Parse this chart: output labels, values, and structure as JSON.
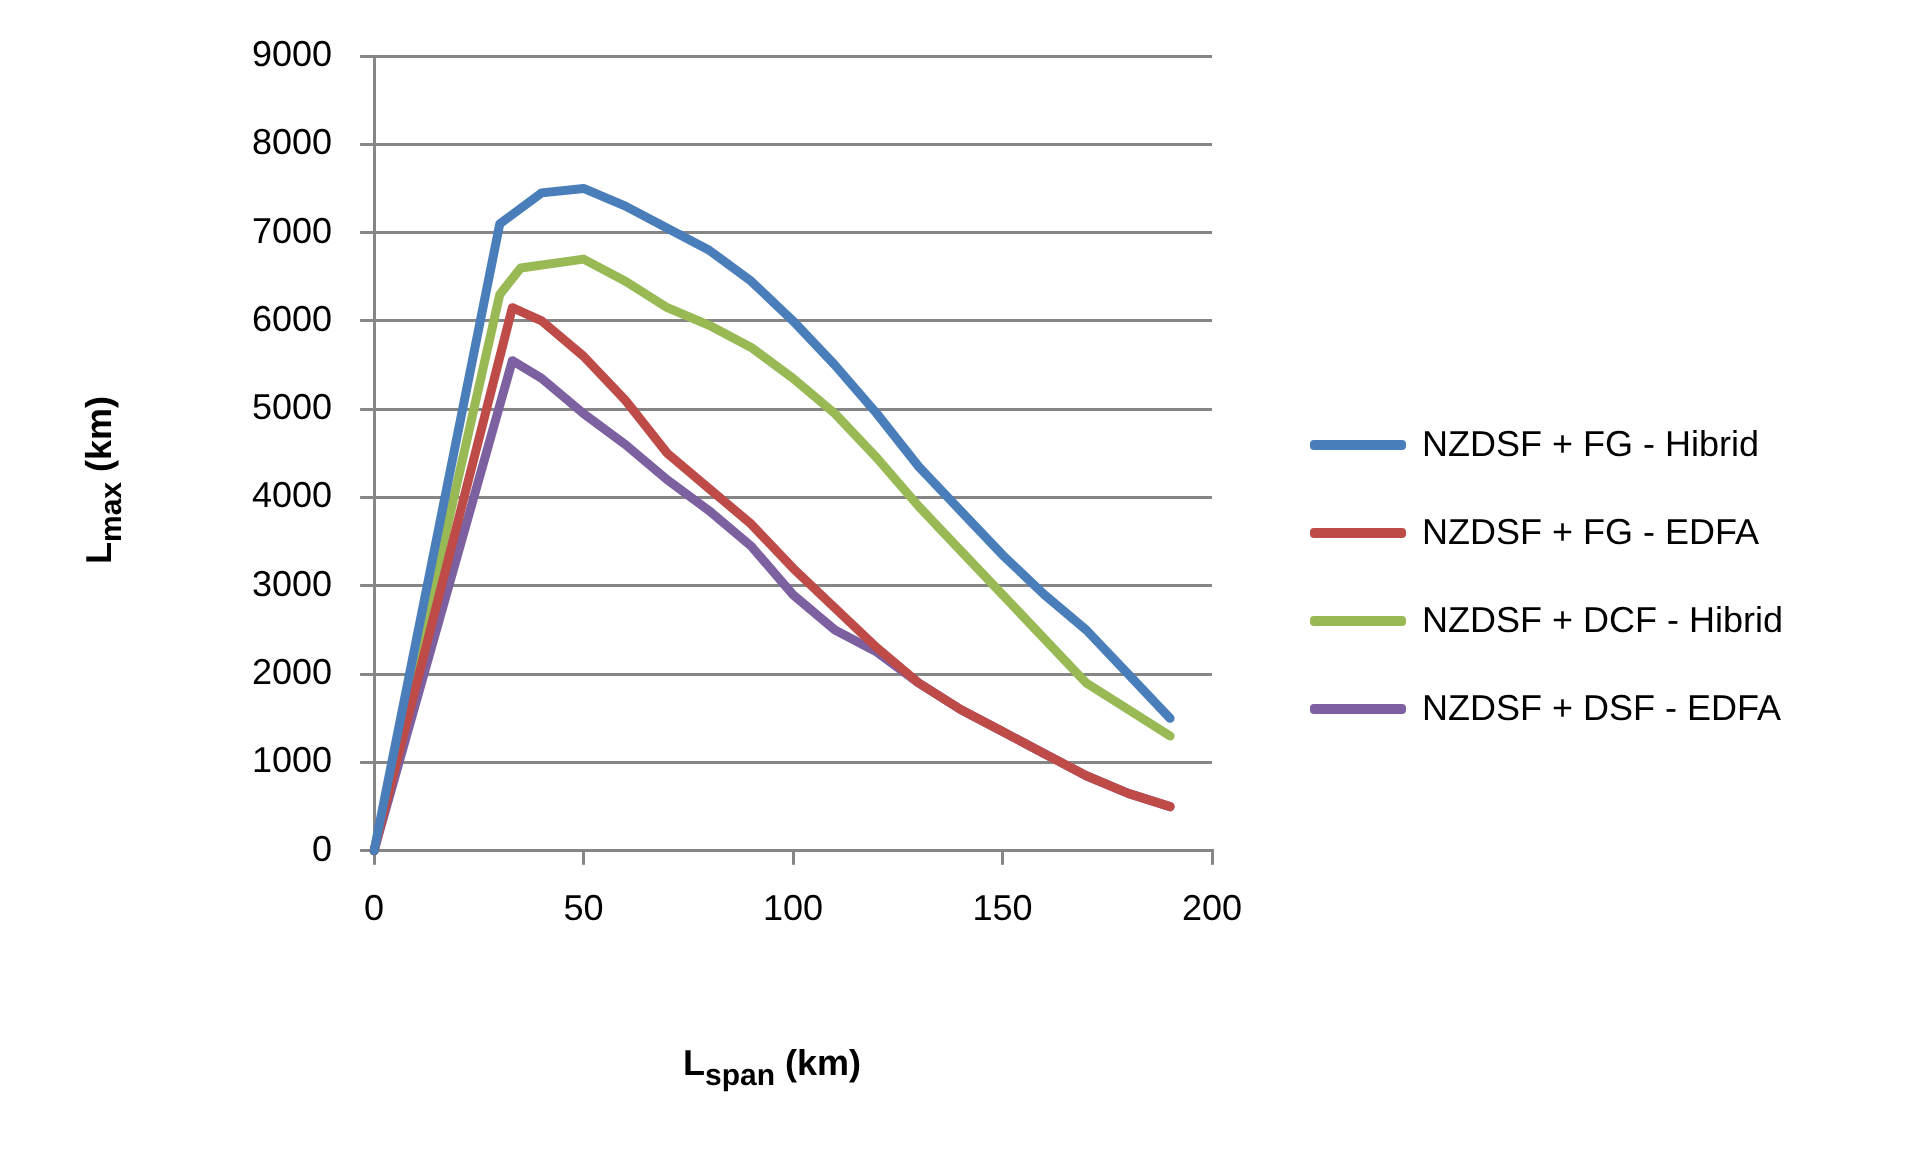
{
  "chart_data": {
    "type": "line",
    "xlabel": "L$_{span}$ (km)",
    "ylabel": "L$_{max}$ (km)",
    "xlim": [
      0,
      200
    ],
    "xticks": [
      0,
      50,
      100,
      150,
      200
    ],
    "ylim": [
      0,
      9000
    ],
    "yticks": [
      0,
      1000,
      2000,
      3000,
      4000,
      5000,
      6000,
      7000,
      8000,
      9000
    ],
    "grid": "y",
    "legend": "right",
    "marker": "none",
    "line_style": "solid",
    "series": [
      {
        "name": "NZDSF + FG - Hibrid",
        "color": "#4a7ebb",
        "x": [
          0,
          30,
          40,
          50,
          60,
          70,
          80,
          90,
          100,
          110,
          120,
          130,
          140,
          150,
          160,
          170,
          180,
          190
        ],
        "values": [
          0,
          7100,
          7450,
          7500,
          7300,
          7050,
          6800,
          6450,
          6000,
          5500,
          4950,
          4350,
          3850,
          3350,
          2900,
          2500,
          2000,
          1500
        ]
      },
      {
        "name": "NZDSF + FG - EDFA",
        "color": "#be4b48",
        "x": [
          0,
          33,
          40,
          50,
          60,
          70,
          80,
          90,
          100,
          110,
          120,
          130,
          140,
          150,
          160,
          170,
          180,
          190
        ],
        "values": [
          0,
          6150,
          6000,
          5600,
          5100,
          4500,
          4100,
          3700,
          3200,
          2750,
          2300,
          1900,
          1600,
          1350,
          1100,
          850,
          650,
          500
        ]
      },
      {
        "name": "NZDSF + DCF - Hibrid",
        "color": "#98b954",
        "x": [
          0,
          30,
          35,
          50,
          60,
          70,
          80,
          90,
          100,
          110,
          120,
          130,
          140,
          150,
          160,
          170,
          180,
          190
        ],
        "values": [
          0,
          6300,
          6600,
          6700,
          6450,
          6150,
          5950,
          5700,
          5350,
          4950,
          4450,
          3900,
          3400,
          2900,
          2400,
          1900,
          1600,
          1300
        ]
      },
      {
        "name": "NZDSF + DSF - EDFA",
        "color": "#7d60a0",
        "x": [
          0,
          33,
          40,
          50,
          60,
          70,
          80,
          90,
          100,
          110,
          120,
          130,
          140,
          150,
          160,
          170,
          180,
          190
        ],
        "values": [
          0,
          5550,
          5350,
          4950,
          4600,
          4200,
          3850,
          3450,
          2900,
          2500,
          2250,
          1900,
          1600,
          1350,
          1100,
          850,
          650,
          500
        ]
      }
    ]
  }
}
